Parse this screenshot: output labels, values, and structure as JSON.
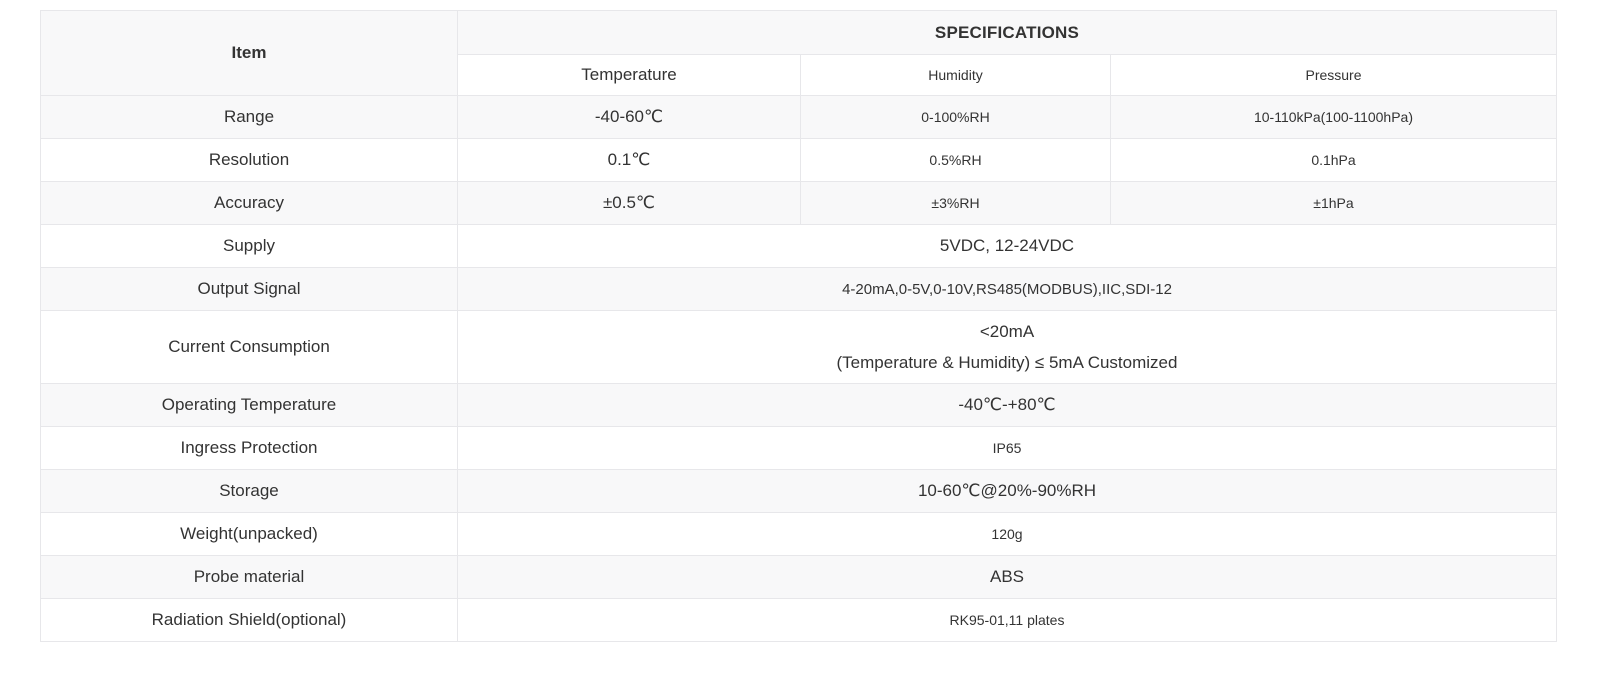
{
  "table": {
    "header": {
      "item": "Item",
      "specifications": "SPECIFICATIONS",
      "columns": [
        "Temperature",
        "Humidity",
        "Pressure"
      ]
    },
    "rows": {
      "range": {
        "label": "Range",
        "temperature": "-40-60℃",
        "humidity": "0-100%RH",
        "pressure": "10-110kPa(100-1100hPa)"
      },
      "resolution": {
        "label": "Resolution",
        "temperature": "0.1℃",
        "humidity": "0.5%RH",
        "pressure": "0.1hPa"
      },
      "accuracy": {
        "label": "Accuracy",
        "temperature": "±0.5℃",
        "humidity": "±3%RH",
        "pressure": "±1hPa"
      },
      "supply": {
        "label": "Supply",
        "value": "5VDC, 12-24VDC"
      },
      "output_signal": {
        "label": "Output Signal",
        "value": "4-20mA,0-5V,0-10V,RS485(MODBUS),IIC,SDI-12"
      },
      "current_consumption": {
        "label": "Current Consumption",
        "value_line1": "<20mA",
        "value_line2": "(Temperature & Humidity) ≤ 5mA Customized"
      },
      "operating_temperature": {
        "label": "Operating Temperature",
        "value": "-40℃-+80℃"
      },
      "ingress_protection": {
        "label": "Ingress Protection",
        "value": "IP65"
      },
      "storage": {
        "label": "Storage",
        "value": "10-60℃@20%-90%RH"
      },
      "weight": {
        "label": "Weight(unpacked)",
        "value": "120g"
      },
      "probe_material": {
        "label": "Probe material",
        "value": "ABS"
      },
      "radiation_shield": {
        "label": "Radiation Shield(optional)",
        "value": "RK95-01,11 plates"
      }
    },
    "colors": {
      "stripe_bg": "#f8f8f9",
      "border": "#e7e7ea",
      "text": "#333333"
    }
  }
}
